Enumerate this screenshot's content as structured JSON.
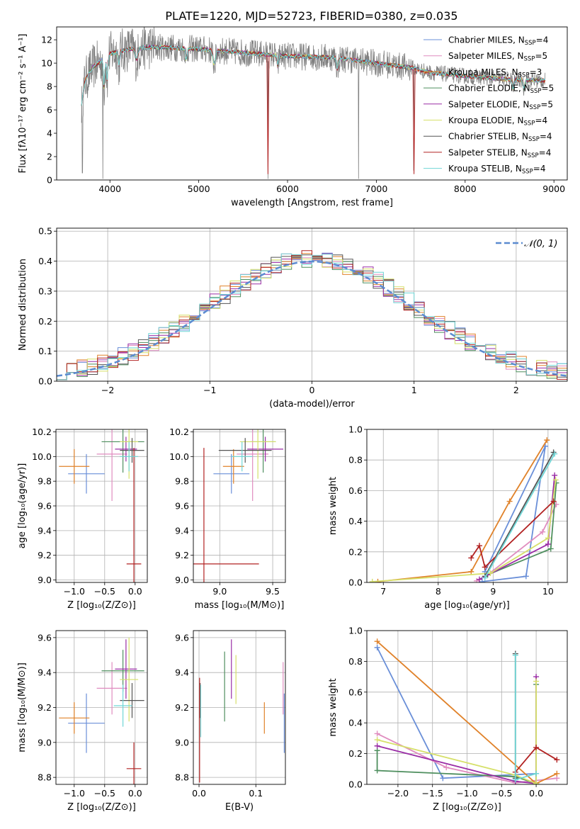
{
  "figure_title": "PLATE=1220, MJD=52723, FIBERID=0380, z=0.035",
  "colors": {
    "data": "#808080",
    "models": [
      "#6a8fd8",
      "#e08cbf",
      "#e0822a",
      "#4f8f5f",
      "#9a2da6",
      "#d6e06a",
      "#555555",
      "#b22222",
      "#6fd6d6"
    ]
  },
  "chart_data": [
    {
      "id": "spectrum",
      "type": "line",
      "xlabel": "wavelength [Angstrom, rest frame]",
      "ylabel": "Flux [fλ10⁻¹⁷ erg cm⁻² s⁻¹ A⁻¹]",
      "xlim": [
        3400,
        9150
      ],
      "ylim": [
        0,
        13.1
      ],
      "xticks": [
        4000,
        5000,
        6000,
        7000,
        8000,
        9000
      ],
      "yticks": [
        0,
        2,
        4,
        6,
        8,
        10,
        12
      ],
      "legend_position": "top-right",
      "legend": [
        {
          "text": "Chabrier MILES, N",
          "sub": "SSP",
          "tail": "=4"
        },
        {
          "text": "Salpeter MILES, N",
          "sub": "SSP",
          "tail": "=5"
        },
        {
          "text": "Kroupa MILES, N",
          "sub": "SSP",
          "tail": "=3"
        },
        {
          "text": "Chabrier ELODIE, N",
          "sub": "SSP",
          "tail": "=5"
        },
        {
          "text": "Salpeter ELODIE, N",
          "sub": "SSP",
          "tail": "=5"
        },
        {
          "text": "Kroupa ELODIE, N",
          "sub": "SSP",
          "tail": "=4"
        },
        {
          "text": "Chabrier STELIB, N",
          "sub": "SSP",
          "tail": "=4"
        },
        {
          "text": "Salpeter STELIB, N",
          "sub": "SSP",
          "tail": "=4"
        },
        {
          "text": "Kroupa STELIB, N",
          "sub": "SSP",
          "tail": "=4"
        }
      ],
      "continuum": {
        "x": [
          3680,
          3720,
          3800,
          3900,
          4000,
          4100,
          4300,
          4500,
          5000,
          5500,
          6000,
          6500,
          7000,
          7400,
          7600,
          8000,
          8500,
          8900
        ],
        "y": [
          6.5,
          8.5,
          9.6,
          10.2,
          10.8,
          11.0,
          11.3,
          11.4,
          11.2,
          10.9,
          10.6,
          10.5,
          10.0,
          9.6,
          9.2,
          8.9,
          8.6,
          8.5
        ]
      }
    },
    {
      "id": "residuals",
      "type": "step",
      "xlabel": "(data-model)/error",
      "ylabel": "Normed distribution",
      "xlim": [
        -2.5,
        2.5
      ],
      "ylim": [
        0,
        0.51
      ],
      "xticks": [
        -2,
        -1,
        0,
        1,
        2
      ],
      "yticks": [
        0.0,
        0.1,
        0.2,
        0.3,
        0.4,
        0.5
      ],
      "legend_label": "𝒩(0, 1)",
      "legend_position": "top-right",
      "bin_width": 0.1
    },
    {
      "id": "age_vs_Z",
      "type": "errorbar",
      "xlabel": "Z [log₁₀(Z/Z⊙)]",
      "ylabel": "age  [log₁₀(age/yr)]",
      "xlim": [
        -1.3,
        0.2
      ],
      "ylim": [
        8.98,
        10.22
      ],
      "xticks": [
        -1.0,
        -0.5,
        0.0
      ],
      "yticks": [
        9.0,
        9.2,
        9.4,
        9.6,
        9.8,
        10.0,
        10.2
      ],
      "points": [
        {
          "x": -0.8,
          "xe": 0.3,
          "y": 9.86,
          "ye": 0.16,
          "c": 0
        },
        {
          "x": -0.38,
          "xe": 0.25,
          "y": 10.02,
          "ye": 0.38,
          "c": 1
        },
        {
          "x": -1.0,
          "xe": 0.25,
          "y": 9.92,
          "ye": 0.14,
          "c": 2
        },
        {
          "x": -0.2,
          "xe": 0.35,
          "y": 10.12,
          "ye": 0.25,
          "c": 3
        },
        {
          "x": -0.15,
          "xe": 0.18,
          "y": 10.06,
          "ye": 0.1,
          "c": 4
        },
        {
          "x": -0.1,
          "xe": 0.15,
          "y": 10.12,
          "ye": 0.3,
          "c": 5
        },
        {
          "x": -0.05,
          "xe": 0.2,
          "y": 10.05,
          "ye": 0.1,
          "c": 6
        },
        {
          "x": -0.02,
          "xe": 0.12,
          "y": 9.13,
          "ye": 0.94,
          "c": 7
        },
        {
          "x": -0.1,
          "xe": 0.15,
          "y": 10.0,
          "ye": 0.12,
          "c": 8
        }
      ]
    },
    {
      "id": "age_vs_mass",
      "type": "errorbar",
      "xlabel": "mass [log₁₀(M/M⊙)]",
      "ylabel": "",
      "xlim": [
        8.75,
        9.62
      ],
      "ylim": [
        8.98,
        10.22
      ],
      "xticks": [
        9.0,
        9.5
      ],
      "yticks": [
        9.0,
        9.2,
        9.4,
        9.6,
        9.8,
        10.0,
        10.2
      ],
      "points": [
        {
          "x": 9.11,
          "xe": 0.17,
          "y": 9.86,
          "ye": 0.16,
          "c": 0
        },
        {
          "x": 9.31,
          "xe": 0.15,
          "y": 10.02,
          "ye": 0.38,
          "c": 1
        },
        {
          "x": 9.13,
          "xe": 0.1,
          "y": 9.92,
          "ye": 0.14,
          "c": 2
        },
        {
          "x": 9.41,
          "xe": 0.12,
          "y": 10.12,
          "ye": 0.25,
          "c": 3
        },
        {
          "x": 9.43,
          "xe": 0.17,
          "y": 10.06,
          "ye": 0.1,
          "c": 4
        },
        {
          "x": 9.36,
          "xe": 0.17,
          "y": 10.12,
          "ye": 0.3,
          "c": 5
        },
        {
          "x": 9.24,
          "xe": 0.25,
          "y": 10.05,
          "ye": 0.1,
          "c": 6
        },
        {
          "x": 8.85,
          "xe": 0.52,
          "y": 9.13,
          "ye": 0.94,
          "c": 7
        },
        {
          "x": 9.21,
          "xe": 0.1,
          "y": 10.0,
          "ye": 0.12,
          "c": 8
        }
      ]
    },
    {
      "id": "weight_vs_age",
      "type": "line",
      "xlabel": "age  [log₁₀(age/yr)]",
      "ylabel": "mass weight",
      "xlim": [
        6.7,
        10.35
      ],
      "ylim": [
        0,
        1.0
      ],
      "xticks": [
        7,
        8,
        9,
        10
      ],
      "yticks": [
        0.0,
        0.2,
        0.4,
        0.6,
        0.8,
        1.0
      ],
      "series": [
        {
          "c": 0,
          "x": [
            8.8,
            9.6,
            9.95,
            8.85
          ],
          "y": [
            0.005,
            0.04,
            0.89,
            0.07
          ]
        },
        {
          "c": 1,
          "x": [
            8.7,
            8.9,
            9.9,
            10.15
          ],
          "y": [
            0.01,
            0.05,
            0.33,
            0.51
          ]
        },
        {
          "c": 2,
          "x": [
            6.9,
            8.6,
            9.3,
            9.98
          ],
          "y": [
            0.005,
            0.07,
            0.53,
            0.93
          ]
        },
        {
          "c": 3,
          "x": [
            8.9,
            10.05,
            10.15
          ],
          "y": [
            0.05,
            0.22,
            0.65
          ]
        },
        {
          "c": 4,
          "x": [
            8.75,
            10.0,
            10.12
          ],
          "y": [
            0.02,
            0.25,
            0.7
          ]
        },
        {
          "c": 5,
          "x": [
            6.8,
            8.95,
            10.0,
            10.14
          ],
          "y": [
            0.005,
            0.06,
            0.29,
            0.67
          ]
        },
        {
          "c": 6,
          "x": [
            8.85,
            10.1
          ],
          "y": [
            0.04,
            0.85
          ]
        },
        {
          "c": 7,
          "x": [
            8.6,
            8.75,
            8.85,
            10.1
          ],
          "y": [
            0.16,
            0.24,
            0.1,
            0.53
          ]
        },
        {
          "c": 8,
          "x": [
            8.85,
            10.12
          ],
          "y": [
            0.03,
            0.84
          ]
        }
      ]
    },
    {
      "id": "mass_vs_Z",
      "type": "errorbar",
      "xlabel": "Z [log₁₀(Z/Z⊙)]",
      "ylabel": "mass [log₁₀(M/M⊙)]",
      "xlim": [
        -1.3,
        0.2
      ],
      "ylim": [
        8.76,
        9.64
      ],
      "xticks": [
        -1.0,
        -0.5,
        0.0
      ],
      "yticks": [
        8.8,
        9.0,
        9.2,
        9.4,
        9.6
      ],
      "points": [
        {
          "x": -0.8,
          "xe": 0.3,
          "y": 9.11,
          "ye": 0.17,
          "c": 0
        },
        {
          "x": -0.38,
          "xe": 0.25,
          "y": 9.31,
          "ye": 0.15,
          "c": 1
        },
        {
          "x": -1.0,
          "xe": 0.25,
          "y": 9.14,
          "ye": 0.09,
          "c": 2
        },
        {
          "x": -0.2,
          "xe": 0.35,
          "y": 9.41,
          "ye": 0.12,
          "c": 3
        },
        {
          "x": -0.15,
          "xe": 0.18,
          "y": 9.42,
          "ye": 0.17,
          "c": 4
        },
        {
          "x": -0.1,
          "xe": 0.15,
          "y": 9.36,
          "ye": 0.24,
          "c": 5
        },
        {
          "x": -0.05,
          "xe": 0.2,
          "y": 9.24,
          "ye": 0.1,
          "c": 6
        },
        {
          "x": -0.02,
          "xe": 0.12,
          "y": 8.85,
          "ye": 0.15,
          "c": 7
        },
        {
          "x": -0.2,
          "xe": 0.15,
          "y": 9.21,
          "ye": 0.12,
          "c": 8
        }
      ]
    },
    {
      "id": "mass_vs_ebv",
      "type": "errorbar",
      "xlabel": "E(B-V)",
      "ylabel": "",
      "xlim": [
        -0.01,
        0.152
      ],
      "ylim": [
        8.76,
        9.64
      ],
      "xticks": [
        0.0,
        0.1
      ],
      "yticks": [
        8.8,
        9.0,
        9.2,
        9.4,
        9.6
      ],
      "points": [
        {
          "x": 0.15,
          "xe": 0,
          "y": 9.11,
          "ye": 0.17,
          "c": 0
        },
        {
          "x": 0.148,
          "xe": 0,
          "y": 9.31,
          "ye": 0.15,
          "c": 1
        },
        {
          "x": 0.115,
          "xe": 0,
          "y": 9.14,
          "ye": 0.09,
          "c": 2
        },
        {
          "x": 0.045,
          "xe": 0,
          "y": 9.32,
          "ye": 0.2,
          "c": 3
        },
        {
          "x": 0.057,
          "xe": 0,
          "y": 9.42,
          "ye": 0.17,
          "c": 4
        },
        {
          "x": 0.065,
          "xe": 0,
          "y": 9.36,
          "ye": 0.14,
          "c": 5
        },
        {
          "x": 0.002,
          "xe": 0,
          "y": 9.24,
          "ye": 0.1,
          "c": 6
        },
        {
          "x": 0.001,
          "xe": 0,
          "y": 9.07,
          "ye": 0.3,
          "c": 7
        },
        {
          "x": 0.003,
          "xe": 0,
          "y": 9.18,
          "ye": 0.15,
          "c": 8
        }
      ]
    },
    {
      "id": "weight_vs_Z",
      "type": "line",
      "xlabel": "Z [log₁₀(Z/Z⊙)]",
      "ylabel": "mass weight",
      "xlim": [
        -2.45,
        0.45
      ],
      "ylim": [
        0,
        1.0
      ],
      "xticks": [
        -2.0,
        -1.5,
        -1.0,
        -0.5,
        0.0
      ],
      "yticks": [
        0.0,
        0.2,
        0.4,
        0.6,
        0.8,
        1.0
      ],
      "series": [
        {
          "c": 0,
          "x": [
            -2.3,
            -1.35,
            0.0,
            0.0
          ],
          "y": [
            0.89,
            0.04,
            0.07,
            0.005
          ]
        },
        {
          "c": 1,
          "x": [
            -2.3,
            -1.3,
            -0.3,
            0.3
          ],
          "y": [
            0.33,
            0.11,
            0.01,
            0.04
          ]
        },
        {
          "c": 2,
          "x": [
            -2.3,
            0.0,
            0.3
          ],
          "y": [
            0.93,
            0.005,
            0.07
          ]
        },
        {
          "c": 3,
          "x": [
            -2.3,
            -2.3,
            -0.3,
            0.0,
            0.0
          ],
          "y": [
            0.22,
            0.09,
            0.05,
            0.005,
            0.65
          ]
        },
        {
          "c": 4,
          "x": [
            -2.3,
            -0.3,
            0.0,
            0.0
          ],
          "y": [
            0.25,
            0.02,
            0.005,
            0.7
          ]
        },
        {
          "c": 5,
          "x": [
            -2.3,
            -0.3,
            0.0,
            0.0
          ],
          "y": [
            0.29,
            0.06,
            0.005,
            0.67
          ]
        },
        {
          "c": 6,
          "x": [
            -0.3,
            -0.3
          ],
          "y": [
            0.85,
            0.04
          ]
        },
        {
          "c": 7,
          "x": [
            -0.3,
            0.0,
            0.3
          ],
          "y": [
            0.08,
            0.24,
            0.16
          ]
        },
        {
          "c": 8,
          "x": [
            -0.3,
            -0.3,
            0.0
          ],
          "y": [
            0.84,
            0.03,
            0.07
          ]
        }
      ]
    }
  ]
}
